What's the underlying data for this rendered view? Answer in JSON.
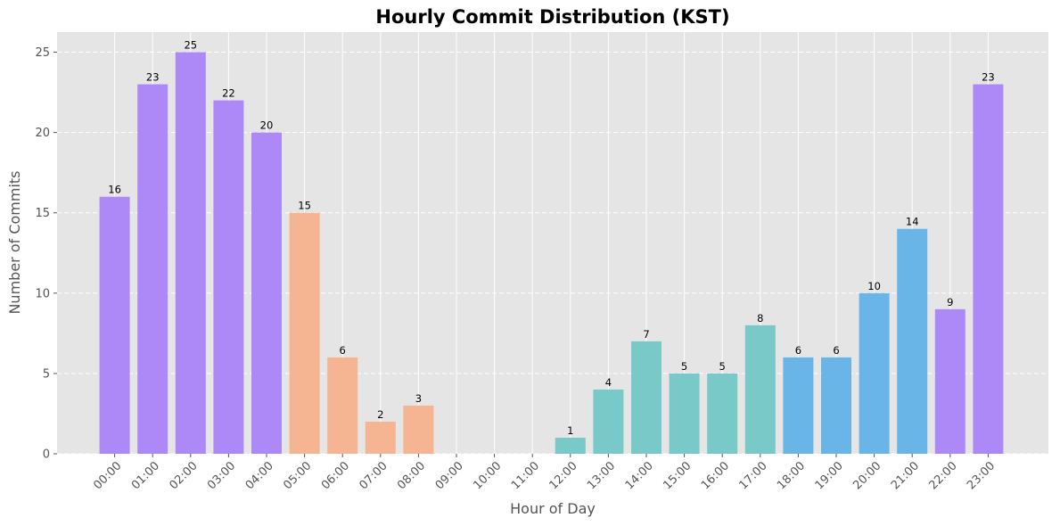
{
  "chart_data": {
    "type": "bar",
    "title": "Hourly Commit Distribution (KST)",
    "xlabel": "Hour of Day",
    "ylabel": "Number of Commits",
    "categories": [
      "00:00",
      "01:00",
      "02:00",
      "03:00",
      "04:00",
      "05:00",
      "06:00",
      "07:00",
      "08:00",
      "09:00",
      "10:00",
      "11:00",
      "12:00",
      "13:00",
      "14:00",
      "15:00",
      "16:00",
      "17:00",
      "18:00",
      "19:00",
      "20:00",
      "21:00",
      "22:00",
      "23:00"
    ],
    "values": [
      16,
      23,
      25,
      22,
      20,
      15,
      6,
      2,
      3,
      0,
      0,
      0,
      1,
      4,
      7,
      5,
      5,
      8,
      6,
      6,
      10,
      14,
      9,
      23
    ],
    "bar_colors": [
      "#ad89f7",
      "#ad89f7",
      "#ad89f7",
      "#ad89f7",
      "#ad89f7",
      "#f6b592",
      "#f6b592",
      "#f6b592",
      "#f6b592",
      "#f6b592",
      "#f6b592",
      "#f6b592",
      "#78c9c8",
      "#78c9c8",
      "#78c9c8",
      "#78c9c8",
      "#78c9c8",
      "#78c9c8",
      "#69b5e8",
      "#69b5e8",
      "#69b5e8",
      "#69b5e8",
      "#ad89f7",
      "#ad89f7"
    ],
    "ylim": [
      0,
      26.25
    ],
    "yticks": [
      0,
      5,
      10,
      15,
      20,
      25
    ],
    "grid": true,
    "background": "#e5e5e5",
    "data_labels": true
  }
}
